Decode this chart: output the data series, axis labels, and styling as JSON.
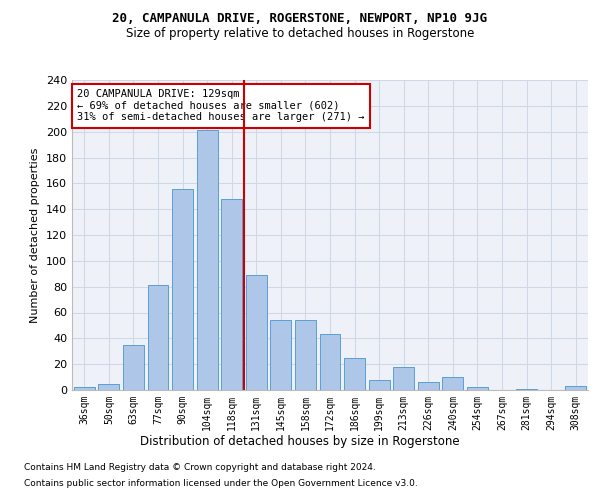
{
  "title1": "20, CAMPANULA DRIVE, ROGERSTONE, NEWPORT, NP10 9JG",
  "title2": "Size of property relative to detached houses in Rogerstone",
  "xlabel": "Distribution of detached houses by size in Rogerstone",
  "ylabel": "Number of detached properties",
  "categories": [
    "36sqm",
    "50sqm",
    "63sqm",
    "77sqm",
    "90sqm",
    "104sqm",
    "118sqm",
    "131sqm",
    "145sqm",
    "158sqm",
    "172sqm",
    "186sqm",
    "199sqm",
    "213sqm",
    "226sqm",
    "240sqm",
    "254sqm",
    "267sqm",
    "281sqm",
    "294sqm",
    "308sqm"
  ],
  "values": [
    2,
    5,
    35,
    81,
    156,
    201,
    148,
    89,
    54,
    54,
    43,
    25,
    8,
    18,
    6,
    10,
    2,
    0,
    1,
    0,
    3
  ],
  "bar_color": "#aec6e8",
  "bar_edgecolor": "#5a9fd4",
  "vline_color": "#cc0000",
  "vline_index": 7,
  "annotation_lines": [
    "20 CAMPANULA DRIVE: 129sqm",
    "← 69% of detached houses are smaller (602)",
    "31% of semi-detached houses are larger (271) →"
  ],
  "annotation_box_edgecolor": "#cc0000",
  "annotation_box_facecolor": "#ffffff",
  "ylim": [
    0,
    240
  ],
  "yticks": [
    0,
    20,
    40,
    60,
    80,
    100,
    120,
    140,
    160,
    180,
    200,
    220,
    240
  ],
  "grid_color": "#d0d8e8",
  "bg_color": "#eef2f8",
  "footnote1": "Contains HM Land Registry data © Crown copyright and database right 2024.",
  "footnote2": "Contains public sector information licensed under the Open Government Licence v3.0."
}
